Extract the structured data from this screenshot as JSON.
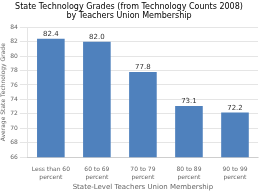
{
  "chart_data": {
    "type": "bar",
    "title": [
      "State Technology Grades (from Technology Counts 2008)",
      "by Teachers Union Membership"
    ],
    "xlabel": "State-Level Teachers Union Membership",
    "ylabel": "Average State Technology Grade",
    "categories": [
      "Less than 60\npercent",
      "60 to 69\npercent",
      "70 to 79\npercent",
      "80 to 89\npercent",
      "90 to 99\npercent"
    ],
    "values": [
      82.4,
      82.0,
      77.8,
      73.1,
      72.2
    ],
    "value_labels": [
      "82.4",
      "82.0",
      "77.8",
      "73.1",
      "72.2"
    ],
    "color": "#4f81bd",
    "ylim": [
      66,
      84
    ],
    "yticks": [
      66,
      68,
      70,
      72,
      74,
      76,
      78,
      80,
      82,
      84
    ],
    "grid": true,
    "data_labels": true
  }
}
